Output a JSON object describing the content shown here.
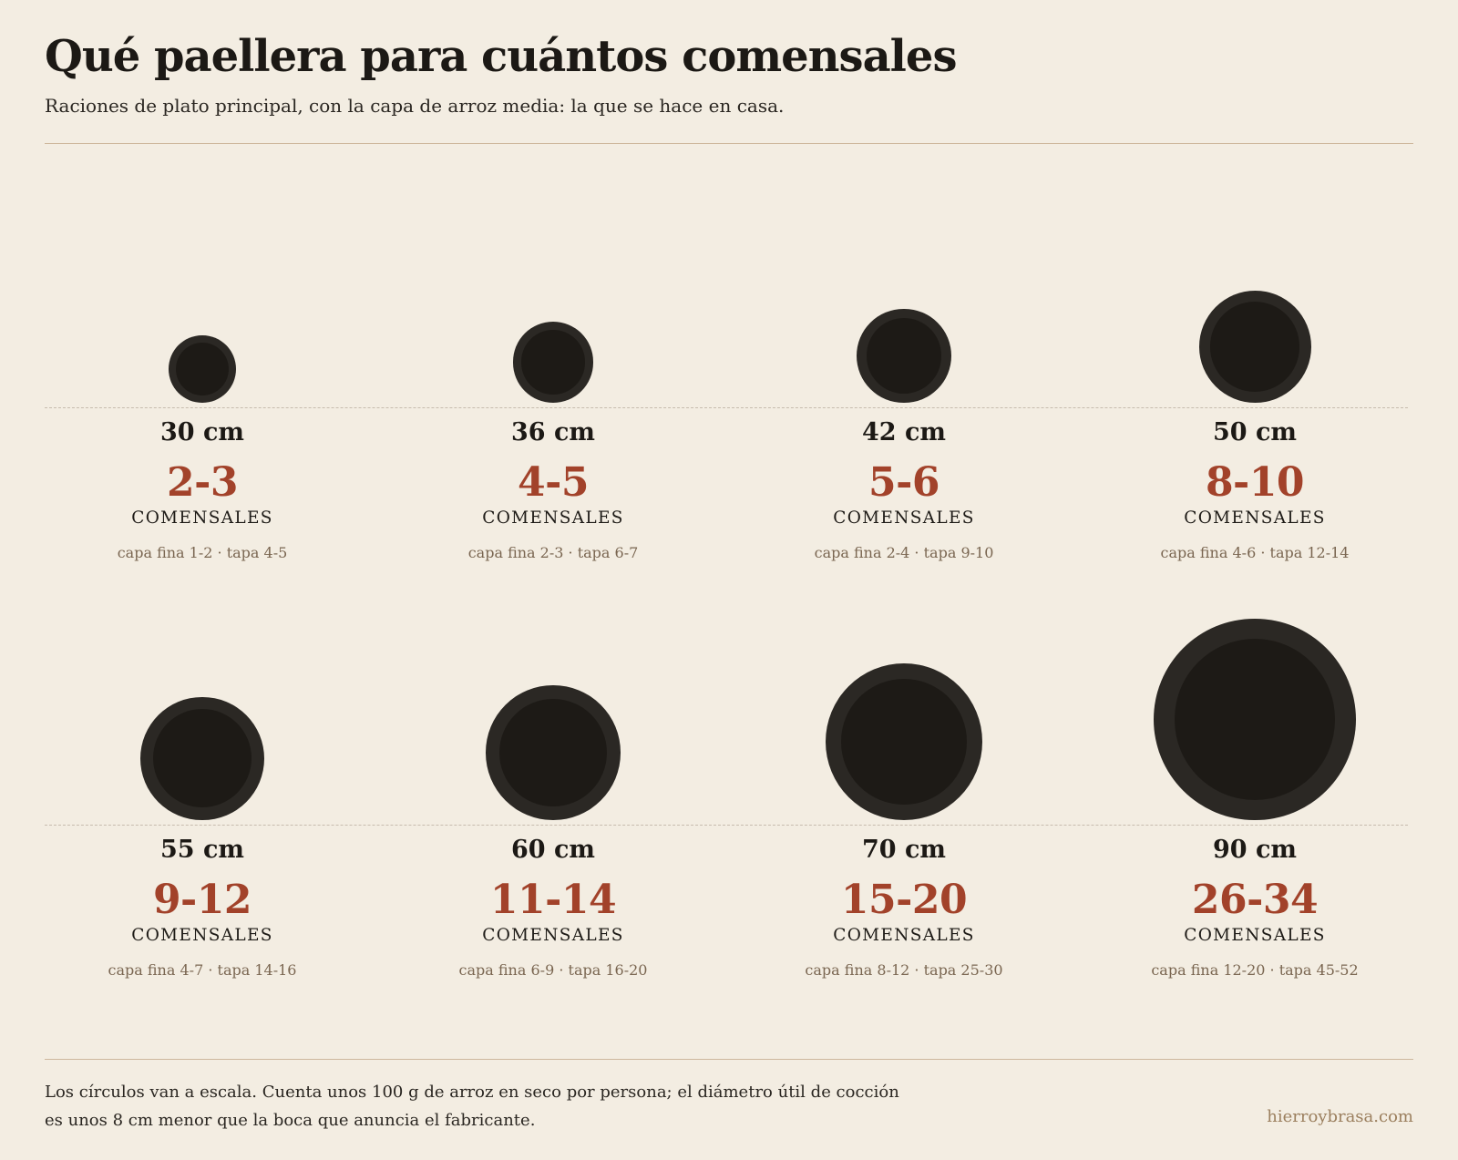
{
  "header": {
    "title": "Qué paellera para cuántos comensales",
    "subtitle": "Raciones de plato principal, con la capa de arroz media: la que se hace en casa."
  },
  "pans": [
    {
      "size_label": "30 cm",
      "diameter_cm": 30,
      "range": "2-3",
      "unit": "COMENSALES",
      "detail": "capa fina 1-2 · tapa 4-5"
    },
    {
      "size_label": "36 cm",
      "diameter_cm": 36,
      "range": "4-5",
      "unit": "COMENSALES",
      "detail": "capa fina 2-3 · tapa 6-7"
    },
    {
      "size_label": "42 cm",
      "diameter_cm": 42,
      "range": "5-6",
      "unit": "COMENSALES",
      "detail": "capa fina 2-4 · tapa 9-10"
    },
    {
      "size_label": "50 cm",
      "diameter_cm": 50,
      "range": "8-10",
      "unit": "COMENSALES",
      "detail": "capa fina 4-6 · tapa 12-14"
    },
    {
      "size_label": "55 cm",
      "diameter_cm": 55,
      "range": "9-12",
      "unit": "COMENSALES",
      "detail": "capa fina 4-7 · tapa 14-16"
    },
    {
      "size_label": "60 cm",
      "diameter_cm": 60,
      "range": "11-14",
      "unit": "COMENSALES",
      "detail": "capa fina 6-9 · tapa 16-20"
    },
    {
      "size_label": "70 cm",
      "diameter_cm": 70,
      "range": "15-20",
      "unit": "COMENSALES",
      "detail": "capa fina 8-12 · tapa 25-30"
    },
    {
      "size_label": "90 cm",
      "diameter_cm": 90,
      "range": "26-34",
      "unit": "COMENSALES",
      "detail": "capa fina 12-20 · tapa 45-52"
    }
  ],
  "footer": {
    "note": "Los círculos van a escala. Cuenta unos 100 g de arroz en seco por persona; el diámetro útil de cocción es unos 8 cm menor que la boca que anuncia el fabricante.",
    "site": "hierroybrasa.com"
  },
  "colors": {
    "background": "#f3ede2",
    "accent": "#a2422a",
    "pan_rim": "#2b2824",
    "pan_base": "#1d1a16",
    "muted": "#7a6651"
  }
}
